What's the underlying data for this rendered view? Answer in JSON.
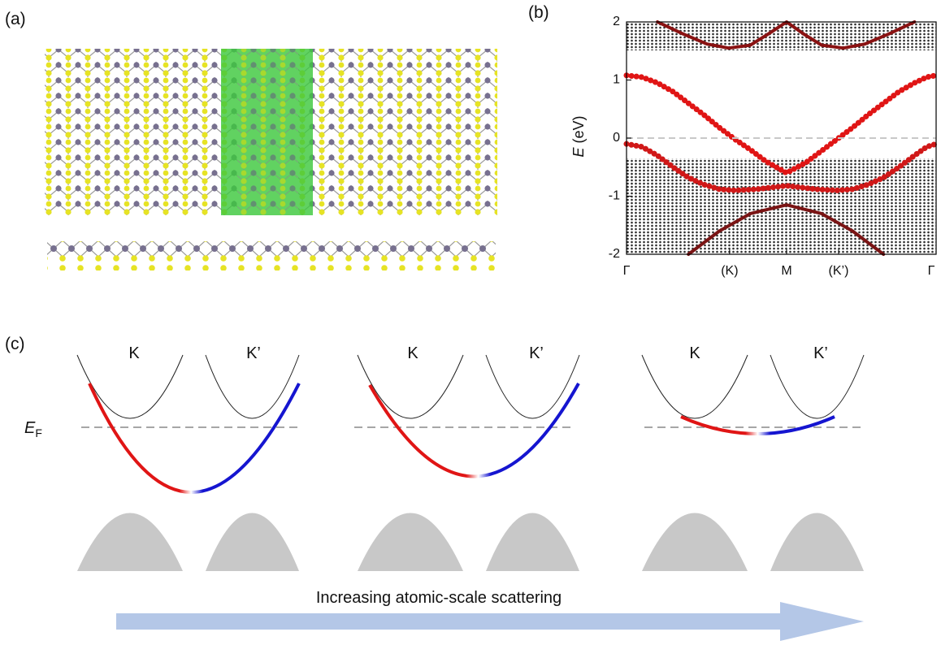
{
  "panels": {
    "a": {
      "label": "(a)"
    },
    "b": {
      "label": "(b)"
    },
    "c": {
      "label": "(c)",
      "valley_labels": [
        [
          "K",
          "K’"
        ],
        [
          "K",
          "K’"
        ],
        [
          "K",
          "K’"
        ]
      ],
      "fermi_label": {
        "main": "E",
        "sub": "F"
      },
      "arrow_label": "Increasing atomic-scale scattering"
    }
  },
  "chart_data": {
    "type": "line",
    "ylabel_symbol": "E",
    "ylabel_unit": "(eV)",
    "xlim": [
      0,
      1
    ],
    "ylim": [
      -2,
      2
    ],
    "yticks": [
      -2,
      -1,
      0,
      1,
      2
    ],
    "xticks": [
      {
        "value": 0,
        "label": "Γ"
      },
      {
        "value": 0.333,
        "label": "(K)"
      },
      {
        "value": 0.517,
        "label": "M"
      },
      {
        "value": 0.685,
        "label": "(K’)"
      },
      {
        "value": 1,
        "label": "Γ"
      }
    ],
    "hline": 0,
    "series": [
      {
        "color": "#e01515",
        "x": [
          0,
          0.05,
          0.1,
          0.15,
          0.2,
          0.25,
          0.3,
          0.35,
          0.4,
          0.45,
          0.517,
          0.58,
          0.63,
          0.685,
          0.73,
          0.78,
          0.83,
          0.88,
          0.93,
          0.97,
          1
        ],
        "values": [
          1.08,
          1.05,
          0.95,
          0.8,
          0.6,
          0.4,
          0.18,
          -0.02,
          -0.2,
          -0.4,
          -0.6,
          -0.42,
          -0.22,
          0,
          0.18,
          0.4,
          0.6,
          0.8,
          0.95,
          1.05,
          1.08
        ]
      },
      {
        "color": "#d01818",
        "x": [
          0,
          0.05,
          0.1,
          0.15,
          0.2,
          0.25,
          0.3,
          0.35,
          0.42,
          0.517,
          0.61,
          0.68,
          0.73,
          0.78,
          0.83,
          0.88,
          0.93,
          0.97,
          1
        ],
        "values": [
          -0.1,
          -0.15,
          -0.3,
          -0.5,
          -0.68,
          -0.8,
          -0.88,
          -0.9,
          -0.88,
          -0.82,
          -0.88,
          -0.9,
          -0.88,
          -0.8,
          -0.68,
          -0.5,
          -0.3,
          -0.15,
          -0.1
        ]
      },
      {
        "color": "#8a1212",
        "x": [
          0.1,
          0.18,
          0.26,
          0.33,
          0.4,
          0.46,
          0.517,
          0.57,
          0.63,
          0.7,
          0.77,
          0.85,
          0.93
        ],
        "values": [
          2,
          1.8,
          1.62,
          1.55,
          1.6,
          1.8,
          2,
          1.8,
          1.6,
          1.55,
          1.62,
          1.8,
          2
        ]
      },
      {
        "color": "#7a1414",
        "x": [
          0.2,
          0.3,
          0.4,
          0.517,
          0.63,
          0.73,
          0.83
        ],
        "values": [
          -2,
          -1.6,
          -1.3,
          -1.15,
          -1.3,
          -1.6,
          -2
        ]
      }
    ]
  }
}
